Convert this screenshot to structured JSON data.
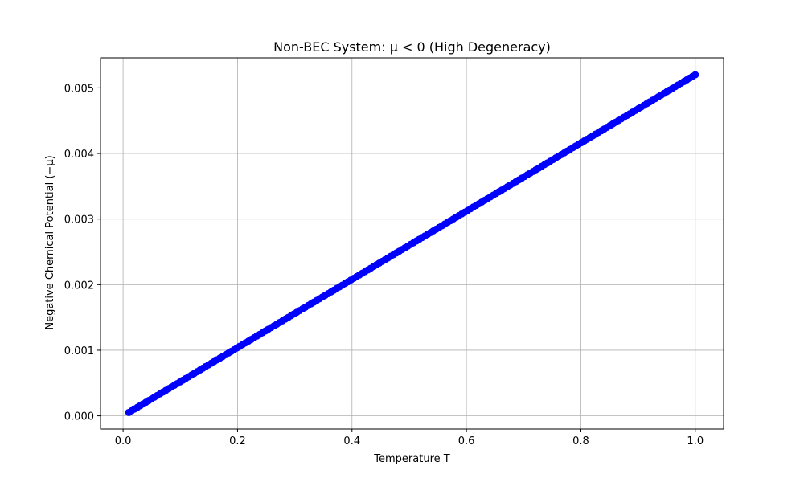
{
  "chart_data": {
    "type": "scatter",
    "title": "Non-BEC System: μ < 0 (High Degeneracy)",
    "xlabel": "Temperature T",
    "ylabel": "Negative Chemical Potential (−μ)",
    "xlim": [
      -0.0395,
      1.0495
    ],
    "ylim": [
      -0.000201,
      0.005458
    ],
    "xticks": [
      0.0,
      0.2,
      0.4,
      0.6,
      0.8,
      1.0
    ],
    "xtick_labels": [
      "0.0",
      "0.2",
      "0.4",
      "0.6",
      "0.8",
      "1.0"
    ],
    "yticks": [
      0.0,
      0.001,
      0.002,
      0.003,
      0.004,
      0.005
    ],
    "ytick_labels": [
      "0.000",
      "0.001",
      "0.002",
      "0.003",
      "0.004",
      "0.005"
    ],
    "grid": true,
    "marker": "circle",
    "marker_color": "#0000ff",
    "series": [
      {
        "name": "-mu",
        "x_start": 0.01,
        "x_end": 1.0,
        "n_points": 200,
        "y_start": 5.2e-05,
        "y_end": 0.0052,
        "relation": "linear"
      }
    ]
  }
}
